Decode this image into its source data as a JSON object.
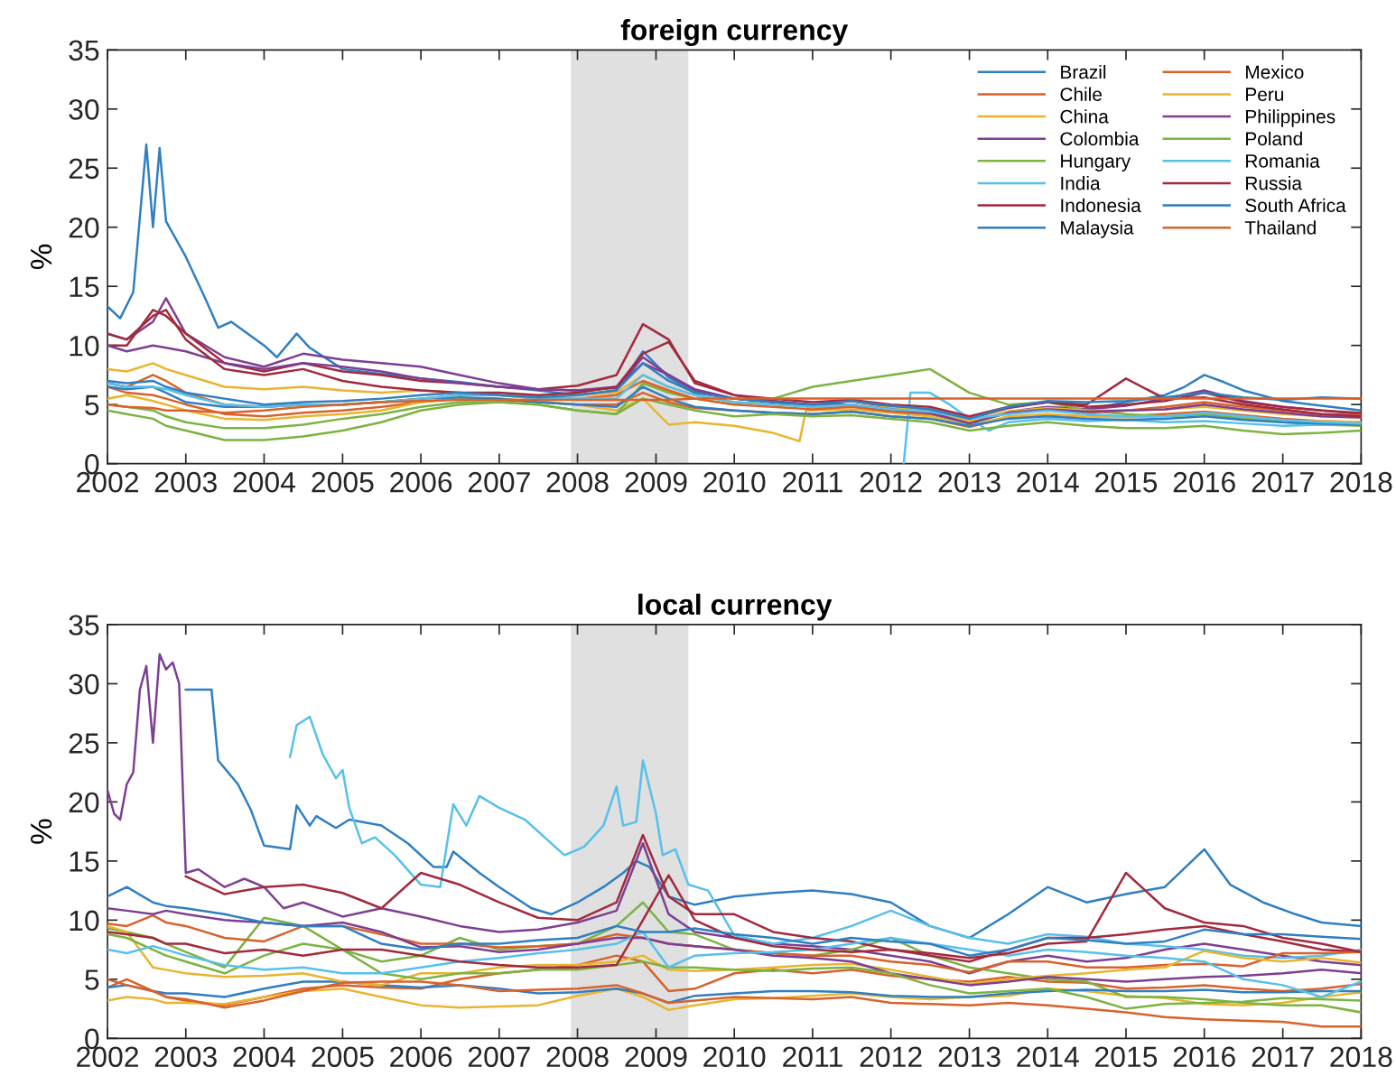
{
  "chart_data": [
    {
      "type": "line",
      "title": "foreign currency",
      "ylabel": "%",
      "legend": "top right",
      "x": [
        "2002-01",
        "2002-04",
        "2002-08",
        "2002-10",
        "2003-01",
        "2003-07",
        "2004-01",
        "2004-07",
        "2005-01",
        "2005-07",
        "2006-01",
        "2006-07",
        "2007-01",
        "2007-07",
        "2008-01",
        "2008-07",
        "2008-11",
        "2009-03",
        "2009-07",
        "2010-01",
        "2010-07",
        "2011-01",
        "2011-07",
        "2012-01",
        "2012-07",
        "2013-01",
        "2013-07",
        "2014-01",
        "2014-07",
        "2015-01",
        "2015-07",
        "2016-01",
        "2016-07",
        "2017-01",
        "2017-07",
        "2018-01"
      ],
      "xlim": [
        "2002",
        "2018"
      ],
      "xticks": [
        "2002",
        "2003",
        "2004",
        "2005",
        "2006",
        "2007",
        "2008",
        "2009",
        "2010",
        "2011",
        "2012",
        "2013",
        "2014",
        "2015",
        "2016",
        "2017",
        "2018"
      ],
      "ylim": [
        0,
        35
      ],
      "yticks": [
        0,
        5,
        10,
        15,
        20,
        25,
        30,
        35
      ],
      "bands": [
        {
          "axis": "x",
          "from": "2007-12",
          "to": "2009-06",
          "color": "#e0e0e0"
        }
      ],
      "series": [
        {
          "name": "Brazil",
          "color": "#2f7fc1",
          "x": [
            "2002-01",
            "2002-03",
            "2002-05",
            "2002-07",
            "2002-08",
            "2002-09",
            "2002-10",
            "2003-01",
            "2003-04",
            "2003-06",
            "2003-08",
            "2004-01",
            "2004-03",
            "2004-06",
            "2004-08",
            "2005-01",
            "2005-07",
            "2006-01",
            "2006-07",
            "2007-01",
            "2007-07",
            "2008-01",
            "2008-07",
            "2008-11",
            "2009-03",
            "2009-07",
            "2010-01",
            "2010-07",
            "2011-01",
            "2011-07",
            "2012-01",
            "2012-07",
            "2013-01",
            "2013-07",
            "2014-01",
            "2014-07",
            "2015-01",
            "2015-07",
            "2015-10",
            "2016-01",
            "2016-04",
            "2016-07",
            "2017-01",
            "2017-07",
            "2018-01"
          ],
          "values": [
            13.3,
            12.3,
            14.5,
            27,
            20,
            26.7,
            20.5,
            17.5,
            14,
            11.5,
            12,
            10,
            9,
            11,
            9.8,
            8,
            7.6,
            7.2,
            6.9,
            6.5,
            6.2,
            5.8,
            6.2,
            9.5,
            7.3,
            6,
            5.5,
            5.3,
            4.8,
            4.9,
            4.5,
            4.2,
            3.4,
            4.3,
            4.7,
            4.6,
            5.2,
            5.8,
            6.5,
            7.5,
            6.9,
            6.2,
            5.3,
            4.9,
            4.5
          ]
        },
        {
          "name": "Chile",
          "color": "#d9622b",
          "values": [
            6.5,
            6,
            5.8,
            5.5,
            5,
            4.2,
            4,
            4.3,
            4.5,
            4.8,
            5.2,
            5.5,
            5.4,
            5.2,
            5,
            5,
            6,
            5.2,
            4.7,
            4.5,
            4.3,
            4.2,
            4.4,
            4,
            3.8,
            3.1,
            3.9,
            4.1,
            4,
            4,
            4.2,
            4.4,
            4.1,
            3.8,
            3.6,
            3.5
          ]
        },
        {
          "name": "China",
          "color": "#e9b530",
          "x": [
            "2002-01",
            "2002-04",
            "2002-08",
            "2002-10",
            "2003-01",
            "2003-07",
            "2004-01",
            "2004-07",
            "2005-01",
            "2005-07",
            "2006-01",
            "2006-07",
            "2007-01",
            "2007-07",
            "2008-01",
            "2008-07",
            "2008-11",
            "2009-03",
            "2009-07",
            "2010-01",
            "2010-07",
            "2010-11",
            "2010-12",
            "2011-07",
            "2012-01",
            "2012-07",
            "2013-01",
            "2013-07",
            "2014-01",
            "2014-07",
            "2015-01",
            "2015-07",
            "2016-01",
            "2016-07",
            "2017-01",
            "2017-07",
            "2018-01"
          ],
          "values": [
            5.5,
            5.8,
            5.3,
            5,
            4.5,
            3.8,
            3.7,
            4,
            4.2,
            4.5,
            5.2,
            5.5,
            5.5,
            5.3,
            5,
            4.5,
            5.5,
            3.3,
            3.5,
            3.2,
            2.6,
            1.9,
            4.5,
            4.6,
            4.3,
            4,
            3.2,
            4,
            4.2,
            4,
            3.9,
            4,
            4.2,
            3.9,
            3.6,
            3.6,
            3.5
          ]
        },
        {
          "name": "Colombia",
          "color": "#7e3f92",
          "values": [
            11,
            10.5,
            12,
            14,
            11,
            9,
            8.2,
            9.3,
            8.8,
            8.5,
            8.2,
            7.5,
            6.8,
            6.3,
            6.2,
            6.4,
            9,
            7.5,
            6.2,
            5.5,
            5.2,
            4.8,
            4.9,
            4.5,
            4.3,
            3.5,
            4.4,
            4.8,
            4.6,
            4.9,
            5.5,
            6.2,
            5.3,
            4.8,
            4.5,
            4.2
          ]
        },
        {
          "name": "Hungary",
          "color": "#7cb342",
          "values": [
            4.5,
            4.2,
            3.8,
            3.2,
            2.8,
            2,
            2,
            2.3,
            2.8,
            3.5,
            4.5,
            5,
            5.2,
            5,
            4.5,
            4.2,
            6.8,
            6,
            5.5,
            5,
            5.5,
            6.5,
            7,
            7.5,
            8,
            6,
            5,
            5.2,
            4.5,
            4.2,
            4,
            4.2,
            3.8,
            3.5,
            3.3,
            3.2
          ]
        },
        {
          "name": "India",
          "color": "#57c0eb",
          "x": [
            "2012-03",
            "2012-04",
            "2012-07",
            "2012-10",
            "2013-01",
            "2013-04",
            "2013-07",
            "2014-01",
            "2014-07",
            "2015-01",
            "2015-07",
            "2016-01",
            "2016-07",
            "2017-01",
            "2017-07",
            "2018-01"
          ],
          "values": [
            0,
            6,
            6,
            5,
            3.8,
            2.8,
            3.5,
            3.8,
            3.6,
            3.7,
            3.5,
            3.6,
            3.4,
            3.2,
            3.3,
            3.4
          ]
        },
        {
          "name": "Indonesia",
          "color": "#a22a3e",
          "values": [
            10,
            10,
            13,
            12.5,
            11,
            8.5,
            7.8,
            8.5,
            7.8,
            7.5,
            7,
            6.8,
            6.5,
            6.3,
            6.6,
            7.5,
            11.8,
            10.5,
            6.8,
            5.8,
            5.3,
            5,
            5.3,
            4.8,
            4.6,
            3.8,
            4.7,
            5.2,
            4.8,
            5,
            5.3,
            6,
            5.2,
            4.8,
            4.5,
            4.3
          ]
        },
        {
          "name": "Malaysia",
          "color": "#2f7fc1",
          "values": [
            6.5,
            6.3,
            6.5,
            6,
            5.2,
            4.8,
            4.8,
            5,
            5,
            5.2,
            5.5,
            5.6,
            5.5,
            5.2,
            5,
            4.8,
            6.5,
            5.5,
            4.8,
            4.5,
            4.3,
            4.2,
            4.4,
            4,
            3.8,
            3.2,
            3.8,
            4,
            3.8,
            3.7,
            3.8,
            4,
            3.7,
            3.5,
            3.4,
            3.3
          ]
        },
        {
          "name": "Mexico",
          "color": "#d9622b",
          "values": [
            6.8,
            6.5,
            7.5,
            7,
            6,
            5,
            4.8,
            5,
            5,
            5.2,
            5.5,
            5.8,
            5.8,
            5.5,
            5.5,
            5.8,
            7,
            6.2,
            5.5,
            5,
            4.8,
            4.6,
            4.8,
            4.4,
            4.2,
            3.5,
            4.3,
            4.5,
            4.3,
            4.5,
            4.8,
            5.2,
            4.8,
            4.5,
            4.2,
            4.1
          ]
        },
        {
          "name": "Peru",
          "color": "#e9b530",
          "values": [
            8,
            7.8,
            8.5,
            8,
            7.5,
            6.5,
            6.3,
            6.5,
            6.2,
            6,
            6.2,
            6,
            5.8,
            5.7,
            5.8,
            6,
            7.5,
            6.5,
            5.8,
            5.2,
            5,
            4.8,
            5,
            4.7,
            4.5,
            3.6,
            4.4,
            4.7,
            4.5,
            4.5,
            4.6,
            4.8,
            4.5,
            4.2,
            4,
            3.9
          ]
        },
        {
          "name": "Philippines",
          "color": "#7e3f92",
          "values": [
            10,
            9.5,
            10,
            9.8,
            9.5,
            8.5,
            8,
            8.5,
            8.2,
            7.8,
            7.2,
            6.8,
            6.5,
            6.3,
            6.2,
            6.5,
            8.5,
            7.5,
            6.3,
            5.5,
            5.2,
            5,
            5,
            4.6,
            4.3,
            3.4,
            4.3,
            4.6,
            4.4,
            4.5,
            4.6,
            5,
            4.6,
            4.3,
            4,
            3.9
          ]
        },
        {
          "name": "Poland",
          "color": "#7cb342",
          "values": [
            5,
            4.8,
            4.5,
            4,
            3.5,
            3,
            3,
            3.3,
            3.8,
            4.2,
            4.8,
            5.2,
            5.2,
            5,
            4.5,
            4.2,
            5.5,
            5,
            4.5,
            4,
            4.2,
            4,
            4.1,
            3.8,
            3.5,
            2.8,
            3.2,
            3.5,
            3.2,
            3,
            3,
            3.2,
            2.8,
            2.5,
            2.6,
            2.8
          ]
        },
        {
          "name": "Romania",
          "color": "#57c0eb",
          "values": [
            6.8,
            6.5,
            6.5,
            6.3,
            5.8,
            5,
            4.8,
            5,
            5,
            5.2,
            5.5,
            5.8,
            5.8,
            5.5,
            5.5,
            5.5,
            7.5,
            6.5,
            5.8,
            5.2,
            5,
            4.8,
            5,
            4.6,
            4.4,
            3.8,
            4.2,
            4.5,
            4.2,
            4,
            4,
            4.3,
            4,
            3.7,
            3.5,
            3.4
          ]
        },
        {
          "name": "Russia",
          "color": "#a22a3e",
          "values": [
            11,
            10.5,
            12.5,
            13,
            10.5,
            8,
            7.5,
            8,
            7,
            6.5,
            6.2,
            6,
            6,
            5.8,
            6,
            6.5,
            9.3,
            10.3,
            7,
            5.8,
            5.5,
            5.2,
            5.4,
            5,
            4.8,
            4,
            4.8,
            5.2,
            5,
            7.2,
            5.5,
            5.6,
            5,
            4.6,
            4.2,
            4
          ]
        },
        {
          "name": "South Africa",
          "color": "#2f7fc1",
          "values": [
            7,
            6.8,
            7,
            6.5,
            6,
            5.5,
            5,
            5.2,
            5.3,
            5.5,
            5.8,
            6,
            5.8,
            5.6,
            5.8,
            6.2,
            8.5,
            7,
            6,
            5.5,
            5.2,
            5,
            5.3,
            4.9,
            4.6,
            3.8,
            4.8,
            5.3,
            5.2,
            5.3,
            5.6,
            6,
            5.6,
            5.4,
            5.6,
            5.5
          ]
        },
        {
          "name": "Thailand",
          "color": "#d9622b",
          "values": [
            5,
            4.8,
            4.7,
            4.5,
            4.5,
            4.3,
            4.5,
            4.8,
            5,
            5.2,
            5.3,
            5.4,
            5.4,
            5.4,
            5.4,
            5.4,
            5.4,
            5.4,
            5.5,
            5.5,
            5.5,
            5.5,
            5.5,
            5.5,
            5.5,
            5.5,
            5.5,
            5.5,
            5.5,
            5.5,
            5.5,
            5.5,
            5.5,
            5.5,
            5.5,
            5.5
          ]
        }
      ]
    },
    {
      "type": "line",
      "title": "local currency",
      "ylabel": "%",
      "x": [
        "2002-01",
        "2002-04",
        "2002-08",
        "2002-10",
        "2003-01",
        "2003-07",
        "2004-01",
        "2004-07",
        "2005-01",
        "2005-07",
        "2006-01",
        "2006-07",
        "2007-01",
        "2007-07",
        "2008-01",
        "2008-07",
        "2008-11",
        "2009-03",
        "2009-07",
        "2010-01",
        "2010-07",
        "2011-01",
        "2011-07",
        "2012-01",
        "2012-07",
        "2013-01",
        "2013-07",
        "2014-01",
        "2014-07",
        "2015-01",
        "2015-07",
        "2016-01",
        "2016-07",
        "2017-01",
        "2017-07",
        "2018-01"
      ],
      "xlim": [
        "2002",
        "2018"
      ],
      "xticks": [
        "2002",
        "2003",
        "2004",
        "2005",
        "2006",
        "2007",
        "2008",
        "2009",
        "2010",
        "2011",
        "2012",
        "2013",
        "2014",
        "2015",
        "2016",
        "2017",
        "2018"
      ],
      "ylim": [
        0,
        35
      ],
      "yticks": [
        0,
        5,
        10,
        15,
        20,
        25,
        30,
        35
      ],
      "bands": [
        {
          "axis": "x",
          "from": "2007-12",
          "to": "2009-06",
          "color": "#e0e0e0"
        }
      ],
      "series": [
        {
          "color": "#2f7fc1",
          "x": [
            "2003-01",
            "2003-05",
            "2003-06",
            "2003-09",
            "2003-11",
            "2004-01",
            "2004-05",
            "2004-06",
            "2004-08",
            "2004-09",
            "2004-12",
            "2005-02",
            "2005-07",
            "2005-11",
            "2006-03",
            "2006-05",
            "2006-06",
            "2006-10",
            "2007-01",
            "2007-06",
            "2007-09",
            "2008-01",
            "2008-05",
            "2008-08",
            "2008-10",
            "2008-12",
            "2009-03",
            "2009-07",
            "2010-01",
            "2010-07",
            "2011-01",
            "2011-07",
            "2012-01",
            "2012-07",
            "2013-01",
            "2013-07",
            "2014-01",
            "2014-07",
            "2015-01",
            "2015-07",
            "2016-01",
            "2016-05",
            "2016-10",
            "2017-03",
            "2017-07",
            "2018-01"
          ],
          "values": [
            29.5,
            29.5,
            23.5,
            21.5,
            19.3,
            16.3,
            16,
            19.7,
            18,
            18.8,
            17.8,
            18.5,
            18,
            16.5,
            14.5,
            14.5,
            15.8,
            14,
            12.8,
            11,
            10.5,
            11.5,
            12.8,
            14,
            15,
            14.5,
            12,
            11.3,
            12,
            12.3,
            12.5,
            12.2,
            11.5,
            9.5,
            8.5,
            10.5,
            12.8,
            11.5,
            12.2,
            12.8,
            16,
            13,
            11.5,
            10.5,
            9.8,
            9.5
          ]
        },
        {
          "color": "#d9622b",
          "values": [
            4.3,
            5,
            4,
            3.5,
            3.2,
            2.8,
            3.5,
            4.2,
            4.5,
            4.3,
            4.2,
            5,
            5.5,
            5.8,
            6.2,
            7,
            6.5,
            4,
            4.2,
            5.5,
            5.8,
            5.5,
            5.8,
            5.3,
            5,
            4.8,
            5.2,
            4.8,
            4.7,
            4.2,
            4.3,
            4.5,
            4.2,
            4,
            4.2,
            4.6
          ]
        },
        {
          "color": "#e9b530",
          "values": [
            3.2,
            3.5,
            3.3,
            3,
            3,
            2.9,
            3.5,
            4,
            4.2,
            3.5,
            2.8,
            2.6,
            2.7,
            2.8,
            3.6,
            4.2,
            3.5,
            2.4,
            2.8,
            3.3,
            3.4,
            3.6,
            3.8,
            3.5,
            3.3,
            3.5,
            3.6,
            4.2,
            4,
            3.6,
            3.4,
            2.9,
            2.8,
            3,
            3.5,
            3.9
          ]
        },
        {
          "color": "#7e3f92",
          "x": [
            "2002-01",
            "2002-02",
            "2002-03",
            "2002-04",
            "2002-05",
            "2002-06",
            "2002-07",
            "2002-08",
            "2002-09",
            "2002-10",
            "2002-11",
            "2002-12",
            "2003-01",
            "2003-03",
            "2003-07",
            "2003-10",
            "2004-01",
            "2004-04",
            "2004-07",
            "2005-01",
            "2005-07",
            "2006-01",
            "2006-07",
            "2007-01",
            "2007-07",
            "2008-01",
            "2008-07",
            "2008-11",
            "2009-03",
            "2009-07",
            "2010-01",
            "2010-07",
            "2011-01",
            "2011-07",
            "2012-01",
            "2012-07",
            "2013-01",
            "2013-07",
            "2014-01",
            "2014-07",
            "2015-01",
            "2015-07",
            "2016-01",
            "2016-07",
            "2017-01",
            "2017-07",
            "2018-01"
          ],
          "values": [
            21,
            19,
            18.5,
            21.5,
            22.5,
            29.5,
            31.5,
            25,
            32.5,
            31.2,
            31.8,
            30,
            14,
            14.3,
            12.8,
            13.5,
            12.8,
            11,
            11.5,
            10.3,
            11,
            10.3,
            9.5,
            9,
            9.2,
            9.8,
            10.8,
            16.5,
            10.5,
            9,
            8.5,
            8,
            7.8,
            7.5,
            7,
            6.5,
            5.5,
            6.5,
            7,
            6.5,
            6.8,
            7.5,
            8,
            7.5,
            7,
            6.5,
            6.2
          ]
        },
        {
          "color": "#7cb342",
          "values": [
            9.3,
            9,
            8.5,
            8,
            7.3,
            6,
            10.2,
            9.5,
            7.5,
            6.5,
            7,
            8.5,
            7.5,
            7.8,
            8,
            9.5,
            11.5,
            9,
            8.8,
            7.5,
            7.2,
            7,
            7.5,
            8.5,
            7,
            6,
            5.5,
            5,
            4.8,
            3.5,
            3.5,
            3.3,
            3,
            2.8,
            2.8,
            2.2
          ]
        },
        {
          "color": "#57c0eb",
          "x": [
            "2004-05",
            "2004-06",
            "2004-08",
            "2004-10",
            "2004-12",
            "2005-01",
            "2005-02",
            "2005-04",
            "2005-06",
            "2005-09",
            "2006-01",
            "2006-04",
            "2006-06",
            "2006-08",
            "2006-10",
            "2007-01",
            "2007-05",
            "2007-08",
            "2007-11",
            "2008-02",
            "2008-05",
            "2008-07",
            "2008-08",
            "2008-10",
            "2008-11",
            "2009-01",
            "2009-02",
            "2009-04",
            "2009-06",
            "2009-09",
            "2010-01",
            "2010-07",
            "2011-01",
            "2011-07",
            "2012-01",
            "2012-07",
            "2013-01",
            "2013-07",
            "2014-01",
            "2014-07",
            "2015-01",
            "2015-07",
            "2016-01",
            "2016-07",
            "2017-01",
            "2017-07",
            "2018-01"
          ],
          "values": [
            23.8,
            26.5,
            27.2,
            24,
            22,
            22.7,
            19.5,
            16.5,
            17,
            15.5,
            13,
            12.8,
            19.8,
            18,
            20.5,
            19.5,
            18.5,
            17,
            15.5,
            16.2,
            18,
            21.3,
            18,
            18.3,
            23.5,
            19,
            15.5,
            16,
            13,
            12.5,
            8.7,
            8,
            8.5,
            9.5,
            10.8,
            9.5,
            8.5,
            8,
            8.8,
            8.6,
            8,
            7.8,
            7.5,
            7,
            6.8,
            7,
            7.5
          ]
        },
        {
          "color": "#a22a3e",
          "values": [
            null,
            null,
            null,
            null,
            13.7,
            12.2,
            12.8,
            13,
            12.3,
            11,
            14,
            13,
            11.5,
            10.2,
            10,
            11.5,
            17.2,
            12,
            10.5,
            10.5,
            9,
            8.5,
            8.2,
            7.5,
            7,
            6.5,
            7.5,
            8.5,
            8.5,
            8.8,
            9.2,
            9.5,
            8.8,
            8.2,
            7.5,
            7.3
          ]
        },
        {
          "color": "#2f7fc1",
          "values": [
            4.3,
            4.5,
            4,
            3.8,
            3.8,
            3.5,
            4.2,
            4.8,
            4.8,
            4.5,
            4.3,
            4.5,
            4.2,
            3.8,
            3.9,
            4.2,
            3.8,
            3,
            3.6,
            3.8,
            4,
            4,
            3.9,
            3.6,
            3.5,
            3.5,
            3.8,
            4,
            4.1,
            4,
            4,
            4.1,
            3.9,
            3.9,
            4,
            4
          ]
        },
        {
          "color": "#d9622b",
          "values": [
            9.7,
            9.5,
            10.4,
            9.8,
            9.5,
            8.5,
            8.2,
            9.5,
            9.5,
            8.8,
            8,
            8,
            7.7,
            7.8,
            8,
            8.8,
            8.5,
            8,
            7.8,
            7.5,
            7.2,
            7,
            7,
            6.5,
            6.2,
            5.6,
            6.5,
            6.5,
            6,
            6,
            6.2,
            6.3,
            6.1,
            7.2,
            7.2,
            7.3
          ]
        },
        {
          "color": "#e9b530",
          "values": [
            9.5,
            9,
            6,
            5.8,
            5.5,
            5.2,
            5.3,
            5.5,
            4.8,
            4.5,
            5.5,
            5.5,
            6,
            6.2,
            6.2,
            6.5,
            7,
            5.8,
            5.7,
            5.8,
            6,
            6.2,
            6.3,
            5.8,
            5.2,
            4.6,
            5,
            5.3,
            5.5,
            5.8,
            6,
            7.4,
            6.8,
            6.5,
            6.8,
            6.4
          ]
        },
        {
          "color": "#7e3f92",
          "values": [
            11,
            10.8,
            10.5,
            10.8,
            10.5,
            10,
            9.8,
            9.5,
            9.8,
            9,
            7.7,
            7.8,
            7.3,
            7.5,
            8,
            8.5,
            8.5,
            8,
            7.8,
            7.5,
            7,
            6.8,
            6.5,
            5.5,
            5,
            4.5,
            4.8,
            5.2,
            5,
            4.8,
            5,
            5.2,
            5.3,
            5.5,
            5.8,
            5.5
          ]
        },
        {
          "color": "#7cb342",
          "values": [
            8.8,
            8.5,
            7.5,
            7,
            6.5,
            5.5,
            7,
            8,
            7.5,
            5.5,
            5,
            5.5,
            5.5,
            5.8,
            5.8,
            6.2,
            6.5,
            6,
            6,
            5.8,
            5.7,
            5.9,
            6,
            5.5,
            4.5,
            3.8,
            4,
            4.2,
            3.5,
            2.5,
            2.9,
            3,
            3.1,
            3.4,
            3.3,
            3.2
          ]
        },
        {
          "color": "#57c0eb",
          "values": [
            7.5,
            7.2,
            7.8,
            7.5,
            7,
            6.2,
            5.8,
            6,
            5.5,
            5.5,
            6,
            6.5,
            6.8,
            7.2,
            7.5,
            8,
            9,
            6,
            7,
            7.2,
            7.3,
            7.5,
            8,
            8.5,
            8,
            7.5,
            7,
            7.5,
            7.3,
            7,
            6.8,
            6.5,
            5,
            4.5,
            3.5,
            4.8
          ]
        },
        {
          "color": "#a22a3e",
          "values": [
            9,
            8.8,
            8.5,
            8,
            8,
            7.2,
            7.5,
            7,
            7.5,
            7.5,
            7,
            6.5,
            6.2,
            6,
            6,
            6.2,
            10,
            13.8,
            10,
            8.5,
            7.8,
            7.5,
            7.3,
            7.5,
            7.2,
            6.8,
            7.2,
            8,
            8.2,
            14,
            11,
            9.8,
            9.5,
            8.5,
            8,
            7.3
          ]
        },
        {
          "color": "#2f7fc1",
          "values": [
            12,
            12.8,
            11.5,
            11.2,
            11,
            10.5,
            9.8,
            9.5,
            9.5,
            8,
            7.5,
            8,
            8,
            8.3,
            8.5,
            9.5,
            9,
            9,
            9.3,
            8.8,
            8.5,
            8,
            8.5,
            8.2,
            8,
            7,
            7.5,
            8.5,
            8.3,
            8,
            8.2,
            9.2,
            8.8,
            8.8,
            8.6,
            8.4
          ]
        },
        {
          "color": "#d9622b",
          "values": [
            5,
            4.5,
            4,
            3.5,
            3.3,
            2.6,
            3.2,
            4,
            4.7,
            4.8,
            4.8,
            4.5,
            4,
            4.1,
            4.2,
            4.5,
            3.8,
            3,
            3.2,
            3.5,
            3.4,
            3.3,
            3.5,
            3,
            2.9,
            2.8,
            3,
            2.8,
            2.5,
            2.2,
            1.8,
            1.6,
            1.5,
            1.4,
            1,
            1
          ]
        }
      ]
    }
  ]
}
